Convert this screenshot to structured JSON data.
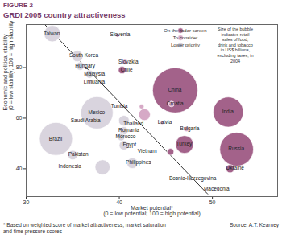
{
  "chart_data": {
    "type": "scatter",
    "figure_label": "FIGURE 2",
    "title": "GRDI 2005 country attractiveness",
    "x_label": "Market potential*\n(0 = low potential; 100 = high potential)",
    "y_label": "Economic and political stability\n(0 = low stability; 100 = high stability)",
    "xlim": [
      30,
      57
    ],
    "ylim": [
      29,
      97
    ],
    "xticks": [
      30,
      40,
      50
    ],
    "yticks": [
      40,
      60,
      80
    ],
    "grid": false,
    "legend": "top-right",
    "size_note": "Size of the bubble indicates retail sales of food, drink and tobacco in US$ billions, excluding taxes, in 2004",
    "footnote": "* Based on weighted score of market attractiveness, market saturation and time pressure scores",
    "source": "Source: A.T. Kearney",
    "reference_line": {
      "x": [
        32,
        49.5
      ],
      "y": [
        97,
        30
      ]
    },
    "series": [
      {
        "name": "On the radar screen",
        "color": "#a3628a",
        "labels": [
          "Slovenia",
          "Chile",
          "China",
          "India",
          "Russia",
          "Ukraine",
          "Turkey",
          "Vietnam"
        ],
        "x": [
          39.8,
          40.3,
          46.0,
          51.7,
          52.6,
          51.9,
          47.0,
          45.5
        ],
        "y": [
          92.8,
          79.0,
          71.0,
          62.4,
          47.7,
          40.0,
          49.6,
          46.7
        ],
        "sizes": [
          3,
          12,
          450,
          200,
          250,
          15,
          70,
          10
        ]
      },
      {
        "name": "To consider",
        "color": "#d6a9c6",
        "labels": [
          "Slovakia",
          "Croatia",
          "Latvia",
          "Bulgaria",
          "Tunisia",
          "Thailand"
        ],
        "x": [
          40.6,
          45.6,
          44.6,
          47.2,
          42.4,
          42.7
        ],
        "y": [
          82.2,
          65.6,
          58.2,
          55.7,
          64.6,
          61.4
        ],
        "sizes": [
          6,
          7,
          3,
          6,
          5,
          30
        ]
      },
      {
        "name": "Lower priority",
        "color": "#d9d4de",
        "labels": [
          "Taiwan",
          "South Korea",
          "Hungary",
          "Malaysia",
          "Lithuania",
          "Mexico",
          "Saudi Arabia",
          "Romania",
          "Morocco",
          "Egypt",
          "Brazil",
          "Pakistan",
          "Indonesia",
          "Philippines",
          "Bosnia-Herzegovina",
          "Macedonia"
        ],
        "x": [
          32.8,
          35.5,
          35.8,
          36.8,
          37.0,
          37.6,
          40.5,
          40.5,
          40.2,
          40.5,
          33.2,
          35.0,
          38.2,
          41.4,
          47.6,
          50.2
        ],
        "y": [
          93.4,
          84.5,
          80.6,
          77.4,
          74.2,
          62.1,
          59.0,
          55.0,
          52.5,
          49.3,
          51.8,
          45.4,
          40.6,
          42.2,
          36.0,
          32.0
        ],
        "sizes": [
          60,
          28,
          15,
          15,
          4,
          230,
          25,
          15,
          12,
          20,
          240,
          20,
          50,
          25,
          3,
          2
        ]
      }
    ]
  }
}
